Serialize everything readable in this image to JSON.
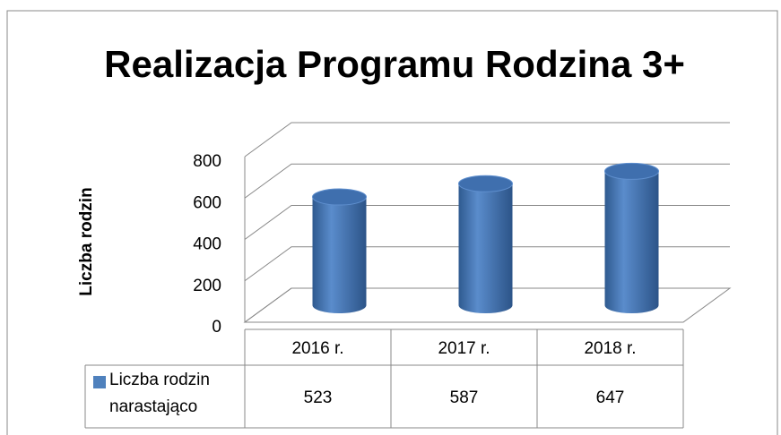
{
  "chart_data": {
    "type": "bar3d",
    "title": "Realizacja Programu Rodzina 3+",
    "y_label": "Liczba rodzin",
    "categories": [
      "2016 r.",
      "2017 r.",
      "2018 r."
    ],
    "series": [
      {
        "name": "Liczba rodzin narastająco",
        "color": "#4f81bd",
        "values": [
          523,
          587,
          647
        ]
      }
    ],
    "ylim": [
      0,
      800
    ],
    "yticks": [
      0,
      200,
      400,
      600,
      800
    ],
    "grid": true
  }
}
